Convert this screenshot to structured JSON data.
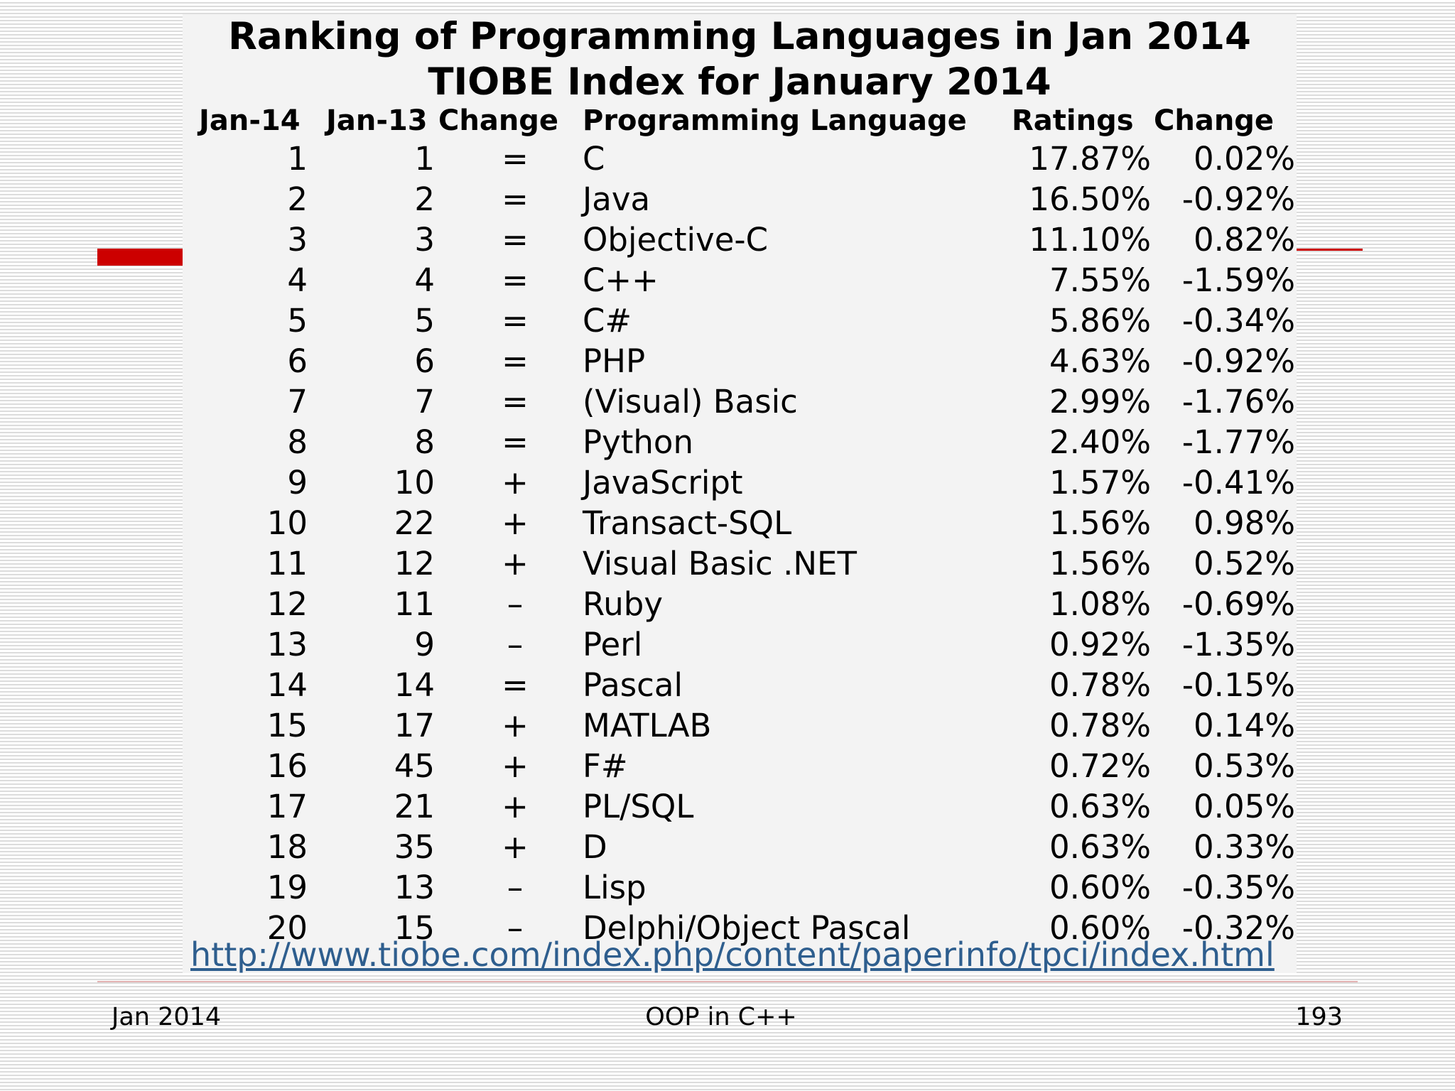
{
  "slide": {
    "title_line1": "Ranking of Programming Languages in Jan 2014",
    "title_line2": "TIOBE Index for January 2014",
    "accent_color": "#cc0000",
    "link_color": "#2e5e8e"
  },
  "table": {
    "headers": {
      "jan14": "Jan-14",
      "jan13": "Jan-13",
      "change": "Change",
      "language": "Programming Language",
      "ratings": "Ratings",
      "rating_change": "Change"
    },
    "rows": [
      {
        "jan14": "1",
        "jan13": "1",
        "change": "=",
        "language": "C",
        "ratings": "17.87%",
        "rating_change": "0.02%"
      },
      {
        "jan14": "2",
        "jan13": "2",
        "change": "=",
        "language": "Java",
        "ratings": "16.50%",
        "rating_change": "-0.92%"
      },
      {
        "jan14": "3",
        "jan13": "3",
        "change": "=",
        "language": "Objective-C",
        "ratings": "11.10%",
        "rating_change": "0.82%"
      },
      {
        "jan14": "4",
        "jan13": "4",
        "change": "=",
        "language": "C++",
        "ratings": "7.55%",
        "rating_change": "-1.59%"
      },
      {
        "jan14": "5",
        "jan13": "5",
        "change": "=",
        "language": "C#",
        "ratings": "5.86%",
        "rating_change": "-0.34%"
      },
      {
        "jan14": "6",
        "jan13": "6",
        "change": "=",
        "language": "PHP",
        "ratings": "4.63%",
        "rating_change": "-0.92%"
      },
      {
        "jan14": "7",
        "jan13": "7",
        "change": "=",
        "language": "(Visual) Basic",
        "ratings": "2.99%",
        "rating_change": "-1.76%"
      },
      {
        "jan14": "8",
        "jan13": "8",
        "change": "=",
        "language": "Python",
        "ratings": "2.40%",
        "rating_change": "-1.77%"
      },
      {
        "jan14": "9",
        "jan13": "10",
        "change": "+",
        "language": "JavaScript",
        "ratings": "1.57%",
        "rating_change": "-0.41%"
      },
      {
        "jan14": "10",
        "jan13": "22",
        "change": "+",
        "language": "Transact-SQL",
        "ratings": "1.56%",
        "rating_change": "0.98%"
      },
      {
        "jan14": "11",
        "jan13": "12",
        "change": "+",
        "language": "Visual Basic .NET",
        "ratings": "1.56%",
        "rating_change": "0.52%"
      },
      {
        "jan14": "12",
        "jan13": "11",
        "change": "–",
        "language": "Ruby",
        "ratings": "1.08%",
        "rating_change": "-0.69%"
      },
      {
        "jan14": "13",
        "jan13": "9",
        "change": "–",
        "language": "Perl",
        "ratings": "0.92%",
        "rating_change": "-1.35%"
      },
      {
        "jan14": "14",
        "jan13": "14",
        "change": "=",
        "language": "Pascal",
        "ratings": "0.78%",
        "rating_change": "-0.15%"
      },
      {
        "jan14": "15",
        "jan13": "17",
        "change": "+",
        "language": "MATLAB",
        "ratings": "0.78%",
        "rating_change": "0.14%"
      },
      {
        "jan14": "16",
        "jan13": "45",
        "change": "+",
        "language": "F#",
        "ratings": "0.72%",
        "rating_change": "0.53%"
      },
      {
        "jan14": "17",
        "jan13": "21",
        "change": "+",
        "language": "PL/SQL",
        "ratings": "0.63%",
        "rating_change": "0.05%"
      },
      {
        "jan14": "18",
        "jan13": "35",
        "change": "+",
        "language": "D",
        "ratings": "0.63%",
        "rating_change": "0.33%"
      },
      {
        "jan14": "19",
        "jan13": "13",
        "change": "–",
        "language": "Lisp",
        "ratings": "0.60%",
        "rating_change": "-0.35%"
      },
      {
        "jan14": "20",
        "jan13": "15",
        "change": "–",
        "language": "Delphi/Object Pascal",
        "ratings": "0.60%",
        "rating_change": "-0.32%"
      }
    ]
  },
  "source_link": "http://www.tiobe.com/index.php/content/paperinfo/tpci/index.html",
  "footer": {
    "left": "Jan 2014",
    "center": "OOP in C++",
    "right": "193"
  }
}
